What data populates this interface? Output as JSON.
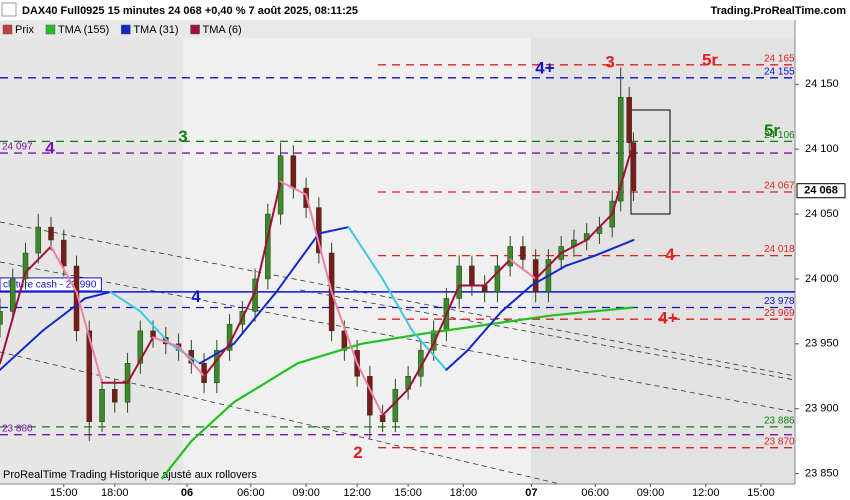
{
  "chart_data": {
    "type": "candlestick",
    "title": "DAX40 Full0925 15 minutes 24 068 +0,40 % 7 août 2025, 08:11:25",
    "source": "Trading.ProRealTime.com",
    "footer": "ProRealTime Trading  Historique ajusté aux rollovers",
    "legend": [
      "Prix",
      "TMA (155)",
      "TMA (31)",
      "TMA (6)"
    ],
    "ylim": [
      23842,
      24198
    ],
    "yticks": [
      {
        "value": 23850,
        "label": "23 850"
      },
      {
        "value": 23900,
        "label": "23 900"
      },
      {
        "value": 23950,
        "label": "23 950"
      },
      {
        "value": 24000,
        "label": "24 000"
      },
      {
        "value": 24050,
        "label": "24 050"
      },
      {
        "value": 24100,
        "label": "24 100"
      },
      {
        "value": 24150,
        "label": "24 150"
      }
    ],
    "xlim": [
      0,
      187
    ],
    "xticks": [
      {
        "value": 15,
        "label": "15:00"
      },
      {
        "value": 27,
        "label": "18:00"
      },
      {
        "value": 44,
        "label": "06"
      },
      {
        "value": 59,
        "label": "06:00"
      },
      {
        "value": 72,
        "label": "09:00"
      },
      {
        "value": 84,
        "label": "12:00"
      },
      {
        "value": 96,
        "label": "15:00"
      },
      {
        "value": 109,
        "label": "18:00"
      },
      {
        "value": 125,
        "label": "07"
      },
      {
        "value": 140,
        "label": "06:00"
      },
      {
        "value": 153,
        "label": "09:00"
      },
      {
        "value": 166,
        "label": "12:00"
      },
      {
        "value": 179,
        "label": "15:00"
      }
    ],
    "candles": {
      "x": [
        0,
        3,
        6,
        9,
        12,
        15,
        18,
        21,
        24,
        27,
        30,
        33,
        36,
        39,
        42,
        45,
        48,
        51,
        54,
        57,
        60,
        63,
        66,
        69,
        72,
        75,
        78,
        81,
        84,
        87,
        90,
        93,
        96,
        99,
        102,
        105,
        108,
        111,
        114,
        117,
        120,
        123,
        126,
        129,
        132,
        135,
        138,
        141,
        144,
        146,
        148,
        149
      ],
      "open": [
        23965,
        23975,
        24000,
        24020,
        24040,
        24030,
        24010,
        23960,
        23890,
        23915,
        23905,
        23935,
        23960,
        23955,
        23950,
        23945,
        23935,
        23920,
        23945,
        23965,
        23975,
        24000,
        24050,
        24095,
        24070,
        24055,
        24020,
        23960,
        23945,
        23925,
        23895,
        23890,
        23915,
        23925,
        23945,
        23960,
        23985,
        24010,
        23995,
        23990,
        24010,
        24025,
        24015,
        23990,
        24015,
        24025,
        24030,
        24035,
        24040,
        24060,
        24140,
        24105
      ],
      "high": [
        23985,
        24008,
        24028,
        24050,
        24048,
        24038,
        24018,
        23968,
        23923,
        23923,
        23943,
        23968,
        23968,
        23963,
        23958,
        23953,
        23943,
        23953,
        23973,
        23983,
        24008,
        24058,
        24105,
        24103,
        24078,
        24063,
        24028,
        23968,
        23953,
        23933,
        23903,
        23923,
        23933,
        23953,
        23968,
        23993,
        24018,
        24018,
        24003,
        24018,
        24033,
        24033,
        24023,
        24023,
        24033,
        24038,
        24043,
        24048,
        24068,
        24163,
        24148,
        24113
      ],
      "low": [
        23955,
        23968,
        23992,
        24012,
        24022,
        24002,
        23952,
        23875,
        23882,
        23897,
        23897,
        23927,
        23947,
        23942,
        23937,
        23927,
        23912,
        23912,
        23937,
        23957,
        23967,
        23992,
        24042,
        24062,
        24047,
        24012,
        23952,
        23937,
        23917,
        23877,
        23882,
        23882,
        23907,
        23917,
        23937,
        23952,
        23977,
        23987,
        23982,
        23982,
        24002,
        24007,
        23982,
        23982,
        24007,
        24017,
        24022,
        24027,
        24032,
        24052,
        24097,
        24060
      ],
      "close": [
        23975,
        24000,
        24020,
        24040,
        24030,
        24010,
        23960,
        23890,
        23915,
        23905,
        23935,
        23960,
        23955,
        23950,
        23945,
        23935,
        23920,
        23945,
        23965,
        23975,
        24000,
        24050,
        24095,
        24070,
        24055,
        24020,
        23960,
        23945,
        23925,
        23895,
        23890,
        23915,
        23925,
        23945,
        23960,
        23985,
        24010,
        23995,
        23990,
        24010,
        24025,
        24015,
        23990,
        24015,
        24025,
        24030,
        24035,
        24040,
        24060,
        24140,
        24105,
        24068
      ],
      "up_color": "#3a8a2a",
      "down_color": "#7a1a1a"
    },
    "series": [
      {
        "name": "TMA (155)",
        "color": "#22c022",
        "x": [
          38,
          45,
          55,
          70,
          85,
          100,
          115,
          130,
          149
        ],
        "values": [
          23846,
          23875,
          23905,
          23935,
          23950,
          23958,
          23965,
          23972,
          23978
        ]
      },
      {
        "name": "TMA (31)",
        "color": "#1428c8",
        "down_color": "#40c8e0",
        "x": [
          0,
          10,
          20,
          26,
          33,
          40,
          47,
          55,
          65,
          75,
          82,
          90,
          97,
          105,
          110,
          118,
          125,
          133,
          140,
          149
        ],
        "values": [
          23930,
          23960,
          23985,
          23990,
          23975,
          23950,
          23935,
          23950,
          23990,
          24035,
          24040,
          24000,
          23960,
          23930,
          23945,
          23975,
          23995,
          24010,
          24018,
          24030
        ]
      },
      {
        "name": "TMA (6)",
        "color": "#a0103a",
        "down_color": "#f080a8",
        "x": [
          0,
          6,
          12,
          18,
          24,
          30,
          36,
          42,
          48,
          54,
          60,
          66,
          72,
          78,
          84,
          90,
          96,
          102,
          108,
          114,
          120,
          126,
          132,
          138,
          144,
          149
        ],
        "values": [
          23935,
          24005,
          24025,
          23990,
          23920,
          23920,
          23955,
          23948,
          23925,
          23950,
          23990,
          24075,
          24065,
          23990,
          23935,
          23895,
          23915,
          23950,
          23995,
          23995,
          24015,
          24000,
          24020,
          24030,
          24050,
          24105
        ]
      }
    ],
    "levels": [
      {
        "value": 24165,
        "label": "24 165",
        "color": "#e02020",
        "markers": [
          "3",
          "5r"
        ]
      },
      {
        "value": 24155,
        "label": "24 155",
        "color": "#1010d0",
        "markers": [
          "4+"
        ]
      },
      {
        "value": 24106,
        "label": "24 106",
        "color": "#108010",
        "markers": [
          "3",
          "5r"
        ]
      },
      {
        "value": 24097,
        "label": "24 097",
        "color": "#8010b0",
        "markers": [
          "4"
        ]
      },
      {
        "value": 24067,
        "label": "24 067",
        "color": "#e02020"
      },
      {
        "value": 24018,
        "label": "24 018",
        "color": "#e02020",
        "markers": [
          "4"
        ]
      },
      {
        "value": 23990,
        "label": "clôture cash -  23 990",
        "color": "#1010d0"
      },
      {
        "value": 23978,
        "label": "23 978",
        "color": "#1010d0",
        "markers": [
          "4"
        ]
      },
      {
        "value": 23969,
        "label": "23 969",
        "color": "#e02020",
        "markers": [
          "4+"
        ]
      },
      {
        "value": 23886,
        "label": "23 886",
        "color": "#108010"
      },
      {
        "value": 23880,
        "label": "23 880",
        "color": "#8010b0"
      },
      {
        "value": 23870,
        "label": "23 870",
        "color": "#e02020",
        "markers": [
          "2"
        ]
      }
    ],
    "last_price": {
      "value": 24068,
      "label": "24 068"
    }
  }
}
